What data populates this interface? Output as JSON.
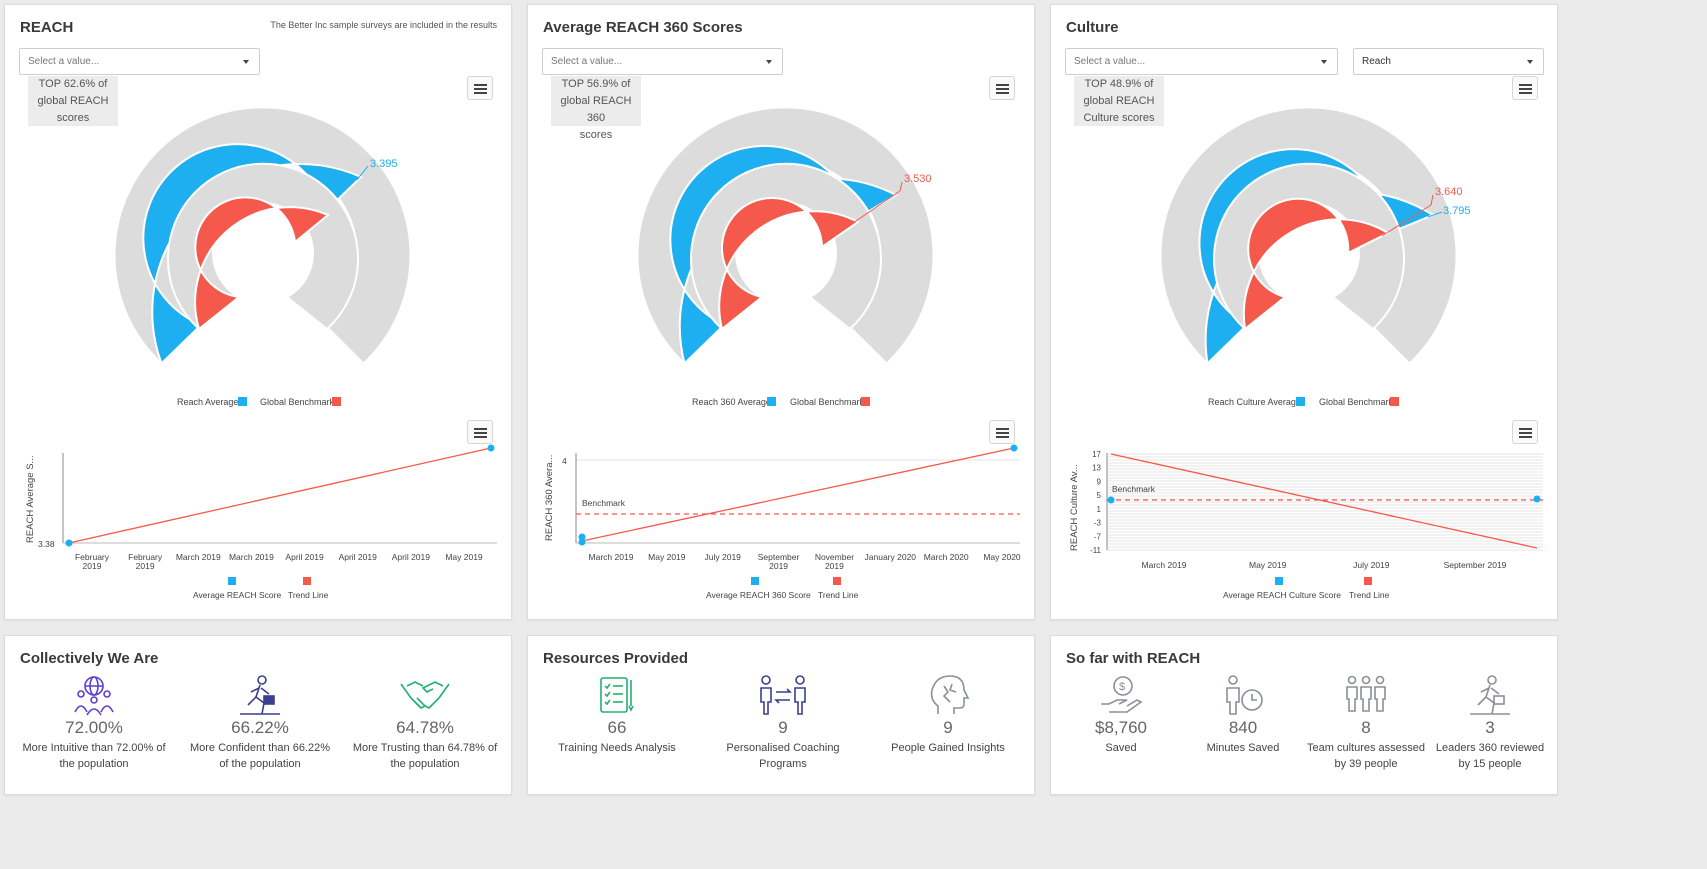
{
  "colors": {
    "blue": "#1eaff0",
    "red": "#f4594b",
    "grey": "#dcdcdc",
    "purple": "#5b3fd6",
    "green": "#22b070",
    "navy": "#3b3f8f",
    "slate": "#8a8f98"
  },
  "reach": {
    "title": "REACH",
    "note": "The Better Inc sample surveys are included in the results",
    "select_placeholder": "Select a value...",
    "badge": "TOP 62.6% of\nglobal REACH\nscores",
    "gauge_label": "3.395",
    "legend": [
      "Reach Average",
      "Global Benchmark"
    ],
    "trend_ylabel": "REACH Average S...",
    "trend_ymin_label": "3.38",
    "trend_xlabels": [
      "February\n2019",
      "February\n2019",
      "March 2019",
      "March 2019",
      "April 2019",
      "April 2019",
      "April 2019",
      "May 2019"
    ],
    "trend_legend": [
      "Average REACH Score",
      "Trend Line"
    ]
  },
  "reach360": {
    "title": "Average REACH 360 Scores",
    "select_placeholder": "Select a value...",
    "badge": "TOP 56.9% of\nglobal REACH 360\nscores",
    "gauge_label": "3.530",
    "legend": [
      "Reach 360 Average",
      "Global Benchmark"
    ],
    "trend_ylabel": "REACH 360 Avera...",
    "trend_ytick": "4",
    "benchmark": "Benchmark",
    "trend_xlabels": [
      "March 2019",
      "May 2019",
      "July 2019",
      "September\n2019",
      "November\n2019",
      "January 2020",
      "March 2020",
      "May 2020"
    ],
    "trend_legend": [
      "Average REACH 360 Score",
      "Trend Line"
    ]
  },
  "culture": {
    "title": "Culture",
    "select_placeholder": "Select a value...",
    "select2_value": "Reach",
    "badge": "TOP 48.9% of\nglobal REACH\nCulture scores",
    "gauge_label_red": "3.640",
    "gauge_label_blue": "3.795",
    "legend": [
      "Reach Culture Average",
      "Global Benchmark"
    ],
    "trend_ylabel": "REACH Culture Av...",
    "trend_yticks": [
      "17",
      "13",
      "9",
      "5",
      "1",
      "-3",
      "-7",
      "-11"
    ],
    "benchmark": "Benchmark",
    "trend_xlabels": [
      "March 2019",
      "May 2019",
      "July 2019",
      "September 2019"
    ],
    "trend_legend": [
      "Average REACH Culture Score",
      "Trend Line"
    ]
  },
  "collectively": {
    "title": "Collectively We Are",
    "stats": [
      {
        "icon": "people-globe-icon",
        "value": "72.00%",
        "label": "More Intuitive than 72.00% of the population"
      },
      {
        "icon": "running-person-icon",
        "value": "66.22%",
        "label": "More Confident than 66.22% of the population"
      },
      {
        "icon": "handshake-icon",
        "value": "64.78%",
        "label": "More Trusting than 64.78% of the population"
      }
    ]
  },
  "resources": {
    "title": "Resources Provided",
    "stats": [
      {
        "icon": "checklist-icon",
        "value": "66",
        "label": "Training Needs Analysis"
      },
      {
        "icon": "coaching-icon",
        "value": "9",
        "label": "Personalised Coaching Programs"
      },
      {
        "icon": "head-insight-icon",
        "value": "9",
        "label": "People Gained Insights"
      }
    ]
  },
  "sofar": {
    "title": "So far with REACH",
    "stats": [
      {
        "icon": "money-hand-icon",
        "value": "$8,760",
        "label": "Saved"
      },
      {
        "icon": "person-clock-icon",
        "value": "840",
        "label": "Minutes Saved"
      },
      {
        "icon": "team-icon",
        "value": "8",
        "label": "Team cultures assessed by 39 people"
      },
      {
        "icon": "leader-icon",
        "value": "3",
        "label": "Leaders 360 reviewed by 15 people"
      }
    ]
  }
}
